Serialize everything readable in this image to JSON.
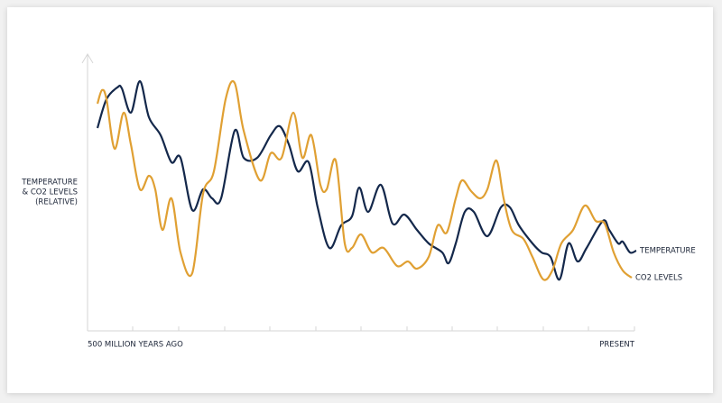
{
  "chart_data": {
    "type": "line",
    "y_label": [
      "TEMPERATURE",
      "& CO2 LEVELS",
      "(RELATIVE)"
    ],
    "x_start_label": "500 MILLION YEARS AGO",
    "x_end_label": "PRESENT",
    "xlim": [
      0,
      606
    ],
    "ylim": [
      0,
      307
    ],
    "series": [
      {
        "name": "TEMPERATURE",
        "color": "#14284b",
        "x": [
          11,
          21,
          33,
          38,
          48,
          58,
          68,
          81,
          93,
          103,
          116,
          128,
          138,
          148,
          163,
          173,
          188,
          203,
          213,
          223,
          233,
          245,
          255,
          268,
          281,
          293,
          301,
          311,
          325,
          338,
          351,
          365,
          378,
          393,
          400,
          408,
          418,
          428,
          443,
          458,
          468,
          478,
          493,
          503,
          513,
          523,
          533,
          543,
          553,
          571,
          578,
          588,
          593,
          601,
          608
        ],
        "values": [
          225,
          257,
          270,
          269,
          242,
          277,
          237,
          217,
          187,
          192,
          134,
          157,
          147,
          147,
          222,
          192,
          192,
          217,
          227,
          207,
          177,
          187,
          137,
          92,
          117,
          127,
          159,
          132,
          162,
          119,
          129,
          112,
          97,
          87,
          75,
          97,
          132,
          132,
          105,
          137,
          137,
          117,
          97,
          87,
          82,
          57,
          97,
          77,
          92,
          122,
          112,
          97,
          99,
          87,
          89
        ]
      },
      {
        "name": "CO2 LEVELS",
        "color": "#e0a033",
        "x": [
          11,
          16,
          21,
          30,
          40,
          48,
          58,
          68,
          75,
          83,
          93,
          103,
          116,
          128,
          140,
          153,
          163,
          173,
          191,
          203,
          215,
          228,
          238,
          248,
          258,
          265,
          275,
          285,
          293,
          303,
          315,
          328,
          343,
          355,
          365,
          378,
          388,
          398,
          408,
          415,
          425,
          435,
          443,
          453,
          461,
          470,
          483,
          493,
          505,
          515,
          525,
          538,
          551,
          563,
          573,
          583,
          593,
          603
        ],
        "values": [
          252,
          267,
          257,
          202,
          242,
          207,
          157,
          172,
          157,
          112,
          147,
          87,
          64,
          152,
          177,
          257,
          275,
          222,
          167,
          197,
          192,
          242,
          192,
          217,
          162,
          157,
          189,
          97,
          92,
          107,
          87,
          92,
          72,
          77,
          69,
          82,
          117,
          109,
          147,
          167,
          155,
          147,
          157,
          189,
          147,
          112,
          102,
          82,
          57,
          67,
          97,
          112,
          139,
          122,
          119,
          87,
          67,
          59
        ]
      }
    ]
  }
}
